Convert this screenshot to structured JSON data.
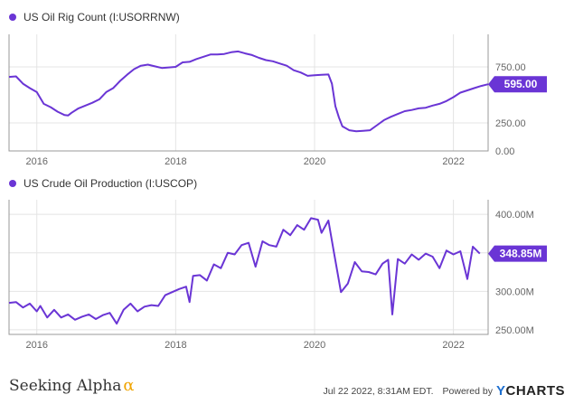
{
  "colors": {
    "series": "#6a35d5",
    "axis": "#999999",
    "grid": "#e4e4e4"
  },
  "legends": {
    "top": "US Oil Rig Count (I:USORRNW)",
    "bottom": "US Crude Oil Production (I:USCOP)"
  },
  "footer": {
    "brand": "Seeking Alpha",
    "brand_mark": "α",
    "timestamp": "Jul 22 2022, 8:31AM EDT.",
    "powered_by": "Powered by",
    "logo_prefix": "Y",
    "logo_rest": "CHARTS"
  },
  "chart_data": [
    {
      "type": "line",
      "name": "US Oil Rig Count (I:USORRNW)",
      "xlabel": "",
      "ylabel": "",
      "x_ticks": [
        "2016",
        "2018",
        "2020",
        "2022"
      ],
      "y_ticks": [
        "0.00",
        "250.00",
        "750.00"
      ],
      "ylim": [
        0,
        1040
      ],
      "grid": true,
      "last_value_label": "595.00",
      "series": [
        {
          "values": [
            [
              2015.6,
              660
            ],
            [
              2015.7,
              665
            ],
            [
              2015.8,
              600
            ],
            [
              2015.9,
              560
            ],
            [
              2016.0,
              525
            ],
            [
              2016.1,
              420
            ],
            [
              2016.2,
              390
            ],
            [
              2016.3,
              350
            ],
            [
              2016.4,
              320
            ],
            [
              2016.45,
              316
            ],
            [
              2016.5,
              340
            ],
            [
              2016.6,
              380
            ],
            [
              2016.7,
              405
            ],
            [
              2016.8,
              430
            ],
            [
              2016.9,
              460
            ],
            [
              2017.0,
              525
            ],
            [
              2017.1,
              560
            ],
            [
              2017.2,
              625
            ],
            [
              2017.3,
              680
            ],
            [
              2017.4,
              730
            ],
            [
              2017.5,
              760
            ],
            [
              2017.6,
              770
            ],
            [
              2017.7,
              755
            ],
            [
              2017.8,
              740
            ],
            [
              2017.9,
              745
            ],
            [
              2018.0,
              750
            ],
            [
              2018.1,
              790
            ],
            [
              2018.2,
              795
            ],
            [
              2018.3,
              820
            ],
            [
              2018.4,
              840
            ],
            [
              2018.5,
              860
            ],
            [
              2018.6,
              860
            ],
            [
              2018.7,
              865
            ],
            [
              2018.8,
              880
            ],
            [
              2018.9,
              888
            ],
            [
              2019.0,
              870
            ],
            [
              2019.1,
              855
            ],
            [
              2019.2,
              830
            ],
            [
              2019.3,
              810
            ],
            [
              2019.4,
              800
            ],
            [
              2019.5,
              780
            ],
            [
              2019.6,
              760
            ],
            [
              2019.7,
              720
            ],
            [
              2019.8,
              700
            ],
            [
              2019.9,
              670
            ],
            [
              2020.0,
              675
            ],
            [
              2020.1,
              680
            ],
            [
              2020.2,
              682
            ],
            [
              2020.25,
              600
            ],
            [
              2020.3,
              400
            ],
            [
              2020.35,
              300
            ],
            [
              2020.4,
              220
            ],
            [
              2020.5,
              185
            ],
            [
              2020.6,
              175
            ],
            [
              2020.7,
              180
            ],
            [
              2020.8,
              185
            ],
            [
              2020.9,
              230
            ],
            [
              2021.0,
              275
            ],
            [
              2021.1,
              305
            ],
            [
              2021.2,
              330
            ],
            [
              2021.3,
              355
            ],
            [
              2021.4,
              365
            ],
            [
              2021.5,
              380
            ],
            [
              2021.6,
              385
            ],
            [
              2021.7,
              405
            ],
            [
              2021.8,
              420
            ],
            [
              2021.9,
              445
            ],
            [
              2022.0,
              480
            ],
            [
              2022.1,
              520
            ],
            [
              2022.2,
              540
            ],
            [
              2022.3,
              560
            ],
            [
              2022.4,
              580
            ],
            [
              2022.5,
              595
            ]
          ]
        }
      ]
    },
    {
      "type": "line",
      "name": "US Crude Oil Production (I:USCOP)",
      "xlabel": "",
      "ylabel": "",
      "x_ticks": [
        "2016",
        "2018",
        "2020",
        "2022"
      ],
      "y_ticks": [
        "250.00M",
        "300.00M",
        "350.00M",
        "400.00M"
      ],
      "ylim": [
        244,
        419
      ],
      "grid": true,
      "last_value_label": "348.85M",
      "series": [
        {
          "values": [
            [
              2015.6,
              285
            ],
            [
              2015.7,
              286
            ],
            [
              2015.8,
              279
            ],
            [
              2015.9,
              284
            ],
            [
              2016.0,
              274
            ],
            [
              2016.05,
              281
            ],
            [
              2016.15,
              266
            ],
            [
              2016.25,
              276
            ],
            [
              2016.35,
              266
            ],
            [
              2016.45,
              270
            ],
            [
              2016.55,
              263
            ],
            [
              2016.65,
              267
            ],
            [
              2016.75,
              270
            ],
            [
              2016.85,
              264
            ],
            [
              2016.95,
              269
            ],
            [
              2017.05,
              272
            ],
            [
              2017.15,
              258
            ],
            [
              2017.25,
              276
            ],
            [
              2017.35,
              284
            ],
            [
              2017.45,
              274
            ],
            [
              2017.55,
              280
            ],
            [
              2017.65,
              282
            ],
            [
              2017.75,
              281
            ],
            [
              2017.85,
              295
            ],
            [
              2017.95,
              299
            ],
            [
              2018.05,
              303
            ],
            [
              2018.15,
              306
            ],
            [
              2018.2,
              286
            ],
            [
              2018.25,
              320
            ],
            [
              2018.35,
              321
            ],
            [
              2018.45,
              314
            ],
            [
              2018.55,
              335
            ],
            [
              2018.65,
              330
            ],
            [
              2018.75,
              350
            ],
            [
              2018.85,
              348
            ],
            [
              2018.95,
              360
            ],
            [
              2019.05,
              363
            ],
            [
              2019.15,
              332
            ],
            [
              2019.25,
              365
            ],
            [
              2019.35,
              360
            ],
            [
              2019.45,
              358
            ],
            [
              2019.55,
              380
            ],
            [
              2019.65,
              373
            ],
            [
              2019.75,
              386
            ],
            [
              2019.85,
              380
            ],
            [
              2019.95,
              395
            ],
            [
              2020.05,
              393
            ],
            [
              2020.1,
              376
            ],
            [
              2020.2,
              392
            ],
            [
              2020.28,
              350
            ],
            [
              2020.38,
              299
            ],
            [
              2020.48,
              310
            ],
            [
              2020.58,
              338
            ],
            [
              2020.68,
              326
            ],
            [
              2020.78,
              325
            ],
            [
              2020.88,
              322
            ],
            [
              2020.98,
              336
            ],
            [
              2021.06,
              341
            ],
            [
              2021.12,
              270
            ],
            [
              2021.2,
              342
            ],
            [
              2021.3,
              336
            ],
            [
              2021.4,
              348
            ],
            [
              2021.5,
              341
            ],
            [
              2021.6,
              349
            ],
            [
              2021.7,
              345
            ],
            [
              2021.8,
              330
            ],
            [
              2021.9,
              353
            ],
            [
              2022.0,
              348
            ],
            [
              2022.1,
              352
            ],
            [
              2022.2,
              316
            ],
            [
              2022.28,
              358
            ],
            [
              2022.38,
              349
            ]
          ]
        }
      ]
    }
  ]
}
